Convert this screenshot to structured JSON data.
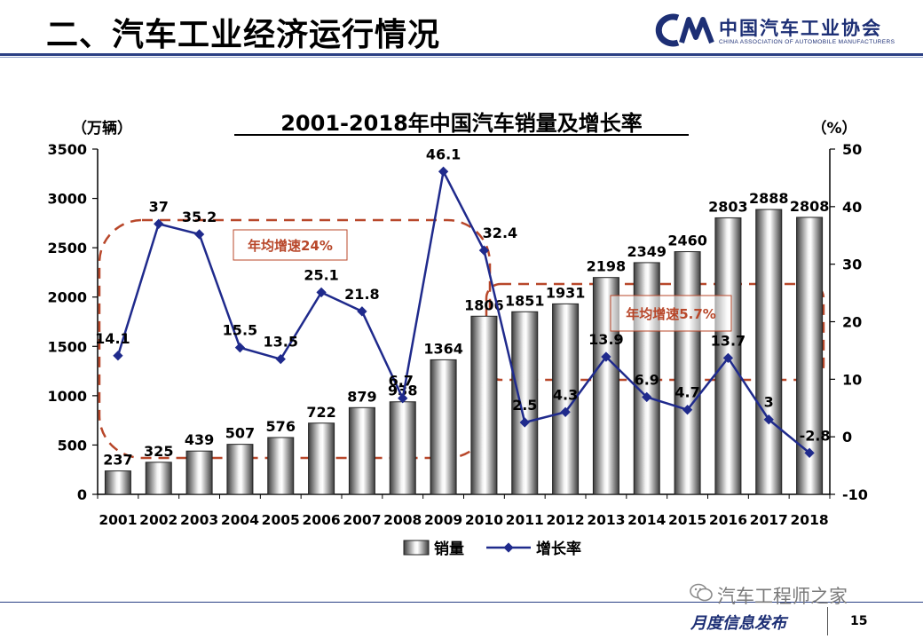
{
  "slide": {
    "title": "二、汽车工业经济运行情况",
    "logo_org": "中国汽车工业协会",
    "logo_org_en": "CHINA ASSOCIATION OF AUTOMOBILE MANUFACTURERS",
    "footer": "月度信息发布",
    "page_number": "15",
    "watermark": "汽车工程师之家",
    "colors": {
      "brand": "#2a3f84",
      "line": "#1f2a8c",
      "annotation": "#b8472a"
    }
  },
  "chart_data": {
    "type": "bar",
    "title": "2001-2018年中国汽车销量及增长率",
    "categories": [
      "2001",
      "2002",
      "2003",
      "2004",
      "2005",
      "2006",
      "2007",
      "2008",
      "2009",
      "2010",
      "2011",
      "2012",
      "2013",
      "2014",
      "2015",
      "2016",
      "2017",
      "2018"
    ],
    "series": [
      {
        "name": "销量",
        "type": "bar",
        "axis": "left",
        "values": [
          237,
          325,
          439,
          507,
          576,
          722,
          879,
          938,
          1364,
          1806,
          1851,
          1931,
          2198,
          2349,
          2460,
          2803,
          2888,
          2808
        ],
        "labels": [
          "237",
          "325",
          "439",
          "507",
          "576",
          "722",
          "879",
          "938",
          "1364",
          "1806",
          "1851",
          "1931",
          "2198",
          "2349",
          "2460",
          "2803",
          "2888",
          "2808"
        ]
      },
      {
        "name": "增长率",
        "type": "line",
        "axis": "right",
        "values": [
          14.1,
          37,
          35.2,
          15.5,
          13.5,
          25.1,
          21.8,
          6.7,
          46.1,
          32.4,
          2.5,
          4.3,
          13.9,
          6.9,
          4.7,
          13.7,
          3,
          -2.8
        ],
        "labels": [
          "14.1",
          "37",
          "35.2",
          "15.5",
          "13.5",
          "25.1",
          "21.8",
          "6.7",
          "46.1",
          "32.4",
          "2.5",
          "4.3",
          "13.9",
          "6.9",
          "4.7",
          "13.7",
          "3",
          "-2.8"
        ]
      }
    ],
    "y_left": {
      "label": "（万辆）",
      "range": [
        0,
        3500
      ],
      "ticks": [
        0,
        500,
        1000,
        1500,
        2000,
        2500,
        3000,
        3500
      ]
    },
    "y_right": {
      "label": "（%）",
      "range": [
        -10,
        50
      ],
      "ticks": [
        -10,
        0,
        10,
        20,
        30,
        40,
        50
      ]
    },
    "legend": {
      "position": "bottom",
      "items": [
        "销量",
        "增长率"
      ]
    },
    "annotations": [
      {
        "text": "年均增速24%",
        "span": [
          "2001",
          "2010"
        ]
      },
      {
        "text": "年均增速5.7%",
        "span": [
          "2011",
          "2018"
        ]
      }
    ],
    "grid": false
  }
}
